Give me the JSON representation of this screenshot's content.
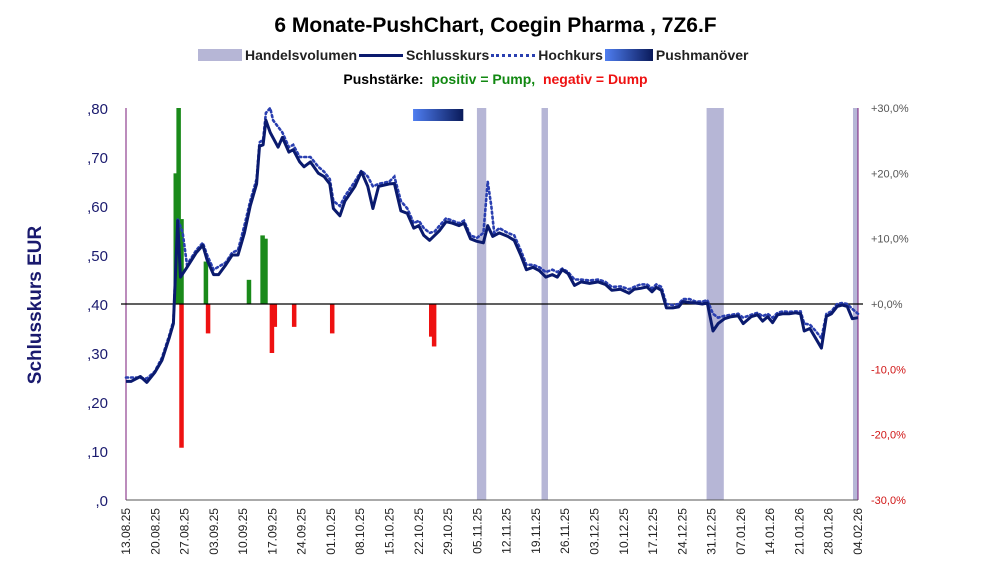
{
  "chart_data": {
    "type": "bar+line",
    "title": "6 Monate-PushChart, Coegin Pharma , 7Z6.F",
    "legend": {
      "volume": "Handelsvolumen",
      "close": "Schlusskurs",
      "high": "Hochkurs",
      "push": "Pushmanöver"
    },
    "subtitle": {
      "prefix": "Pushstärke:",
      "positive": "positiv = Pump,",
      "negative": "negativ = Dump"
    },
    "ylabel": "Schlusskurs EUR",
    "ylim": [
      0,
      0.8
    ],
    "y_ticks": [
      ",0",
      ",10",
      ",20",
      ",30",
      ",40",
      ",50",
      ",60",
      ",70",
      ",80"
    ],
    "y2lim": [
      -30,
      30
    ],
    "y2_ticks": [
      "-30,0%",
      "-20,0%",
      "-10,0%",
      "+0,0%",
      "+10,0%",
      "+20,0%",
      "+30,0%"
    ],
    "x_ticks": [
      "13.08.25",
      "20.08.25",
      "27.08.25",
      "03.09.25",
      "10.09.25",
      "17.09.25",
      "24.09.25",
      "01.10.25",
      "08.10.25",
      "15.10.25",
      "22.10.25",
      "29.10.25",
      "05.11.25",
      "12.11.25",
      "19.11.25",
      "26.11.25",
      "03.12.25",
      "10.12.25",
      "17.12.25",
      "24.12.25",
      "31.12.25",
      "07.01.26",
      "14.01.26",
      "21.01.26",
      "28.01.26",
      "04.02.26"
    ],
    "colors": {
      "close": "#0a1a6e",
      "high": "#2a3fb0",
      "volume": "#b6b6d6",
      "pump": "#1a8a1a",
      "dump": "#ee1111",
      "secondary_axis": "#7a1a7a",
      "primary_axis_text": "#1a1a6e"
    },
    "close_series": {
      "name": "Schlusskurs",
      "points": [
        [
          0.0,
          0.242
        ],
        [
          0.7,
          0.242
        ],
        [
          2.0,
          0.252
        ],
        [
          2.9,
          0.24
        ],
        [
          4.0,
          0.26
        ],
        [
          5.0,
          0.285
        ],
        [
          6.0,
          0.33
        ],
        [
          6.6,
          0.36
        ],
        [
          7.2,
          0.57
        ],
        [
          7.6,
          0.455
        ],
        [
          8.5,
          0.475
        ],
        [
          9.8,
          0.505
        ],
        [
          10.7,
          0.52
        ],
        [
          11.3,
          0.49
        ],
        [
          12.2,
          0.46
        ],
        [
          12.9,
          0.46
        ],
        [
          13.9,
          0.48
        ],
        [
          14.8,
          0.5
        ],
        [
          15.6,
          0.5
        ],
        [
          16.5,
          0.545
        ],
        [
          17.3,
          0.6
        ],
        [
          18.2,
          0.645
        ],
        [
          18.6,
          0.722
        ],
        [
          19.1,
          0.725
        ],
        [
          19.5,
          0.775
        ],
        [
          20.1,
          0.75
        ],
        [
          21.2,
          0.72
        ],
        [
          21.8,
          0.74
        ],
        [
          22.7,
          0.71
        ],
        [
          23.3,
          0.715
        ],
        [
          24.2,
          0.69
        ],
        [
          24.8,
          0.68
        ],
        [
          25.7,
          0.69
        ],
        [
          26.8,
          0.667
        ],
        [
          27.6,
          0.66
        ],
        [
          28.4,
          0.645
        ],
        [
          28.9,
          0.595
        ],
        [
          29.8,
          0.58
        ],
        [
          30.5,
          0.61
        ],
        [
          31.9,
          0.64
        ],
        [
          32.8,
          0.67
        ],
        [
          33.7,
          0.64
        ],
        [
          34.4,
          0.595
        ],
        [
          35.2,
          0.64
        ],
        [
          36.7,
          0.645
        ],
        [
          37.4,
          0.646
        ],
        [
          38.3,
          0.59
        ],
        [
          39.2,
          0.585
        ],
        [
          40.1,
          0.555
        ],
        [
          40.8,
          0.56
        ],
        [
          41.5,
          0.54
        ],
        [
          42.3,
          0.53
        ],
        [
          43.0,
          0.54
        ],
        [
          43.7,
          0.55
        ],
        [
          44.6,
          0.568
        ],
        [
          45.5,
          0.565
        ],
        [
          46.4,
          0.56
        ],
        [
          47.1,
          0.565
        ],
        [
          48.0,
          0.533
        ],
        [
          48.9,
          0.528
        ],
        [
          49.8,
          0.525
        ],
        [
          50.4,
          0.56
        ],
        [
          51.1,
          0.538
        ],
        [
          52.0,
          0.545
        ],
        [
          53.2,
          0.538
        ],
        [
          54.1,
          0.53
        ],
        [
          55.0,
          0.5
        ],
        [
          55.8,
          0.47
        ],
        [
          56.7,
          0.475
        ],
        [
          57.6,
          0.468
        ],
        [
          58.5,
          0.455
        ],
        [
          59.4,
          0.46
        ],
        [
          60.1,
          0.455
        ],
        [
          60.8,
          0.47
        ],
        [
          61.6,
          0.462
        ],
        [
          62.5,
          0.438
        ],
        [
          63.4,
          0.445
        ],
        [
          64.6,
          0.442
        ],
        [
          65.8,
          0.445
        ],
        [
          66.8,
          0.44
        ],
        [
          67.7,
          0.428
        ],
        [
          68.9,
          0.43
        ],
        [
          70.1,
          0.422
        ],
        [
          70.8,
          0.43
        ],
        [
          71.7,
          0.432
        ],
        [
          72.6,
          0.435
        ],
        [
          73.3,
          0.425
        ],
        [
          73.9,
          0.434
        ],
        [
          74.6,
          0.428
        ],
        [
          75.3,
          0.392
        ],
        [
          76.2,
          0.392
        ],
        [
          77.0,
          0.394
        ],
        [
          77.6,
          0.405
        ],
        [
          78.5,
          0.403
        ],
        [
          79.4,
          0.402
        ],
        [
          80.3,
          0.4
        ],
        [
          81.0,
          0.402
        ],
        [
          81.8,
          0.345
        ],
        [
          82.5,
          0.36
        ],
        [
          83.4,
          0.37
        ],
        [
          84.3,
          0.374
        ],
        [
          85.3,
          0.376
        ],
        [
          86.0,
          0.36
        ],
        [
          87.1,
          0.374
        ],
        [
          88.0,
          0.378
        ],
        [
          88.7,
          0.365
        ],
        [
          89.4,
          0.374
        ],
        [
          90.1,
          0.362
        ],
        [
          90.8,
          0.378
        ],
        [
          91.5,
          0.38
        ],
        [
          92.4,
          0.38
        ],
        [
          93.3,
          0.382
        ],
        [
          94.0,
          0.38
        ],
        [
          94.5,
          0.345
        ],
        [
          95.3,
          0.35
        ],
        [
          96.1,
          0.33
        ],
        [
          96.9,
          0.31
        ],
        [
          97.6,
          0.375
        ],
        [
          98.3,
          0.38
        ],
        [
          99.1,
          0.395
        ],
        [
          99.8,
          0.398
        ],
        [
          100.5,
          0.395
        ],
        [
          101.2,
          0.37
        ],
        [
          102.0,
          0.372
        ]
      ]
    },
    "high_series": {
      "name": "Hochkurs",
      "points": [
        [
          0.0,
          0.25
        ],
        [
          1.4,
          0.25
        ],
        [
          2.9,
          0.248
        ],
        [
          4.0,
          0.262
        ],
        [
          5.0,
          0.29
        ],
        [
          6.0,
          0.335
        ],
        [
          6.6,
          0.365
        ],
        [
          7.2,
          0.575
        ],
        [
          7.9,
          0.545
        ],
        [
          8.5,
          0.48
        ],
        [
          9.8,
          0.51
        ],
        [
          10.7,
          0.525
        ],
        [
          11.3,
          0.5
        ],
        [
          12.2,
          0.47
        ],
        [
          13.9,
          0.485
        ],
        [
          14.8,
          0.505
        ],
        [
          15.6,
          0.51
        ],
        [
          16.5,
          0.56
        ],
        [
          17.3,
          0.61
        ],
        [
          18.2,
          0.655
        ],
        [
          18.6,
          0.73
        ],
        [
          19.1,
          0.735
        ],
        [
          19.5,
          0.79
        ],
        [
          20.1,
          0.8
        ],
        [
          20.5,
          0.775
        ],
        [
          21.8,
          0.75
        ],
        [
          22.7,
          0.72
        ],
        [
          23.3,
          0.725
        ],
        [
          24.2,
          0.7
        ],
        [
          24.8,
          0.7
        ],
        [
          25.7,
          0.7
        ],
        [
          26.8,
          0.68
        ],
        [
          27.6,
          0.67
        ],
        [
          28.4,
          0.655
        ],
        [
          28.9,
          0.61
        ],
        [
          29.8,
          0.6
        ],
        [
          30.5,
          0.62
        ],
        [
          31.9,
          0.65
        ],
        [
          32.8,
          0.672
        ],
        [
          33.7,
          0.66
        ],
        [
          34.4,
          0.64
        ],
        [
          35.2,
          0.645
        ],
        [
          36.7,
          0.65
        ],
        [
          37.4,
          0.66
        ],
        [
          38.3,
          0.61
        ],
        [
          39.2,
          0.595
        ],
        [
          40.1,
          0.565
        ],
        [
          40.8,
          0.57
        ],
        [
          41.5,
          0.555
        ],
        [
          42.3,
          0.545
        ],
        [
          43.0,
          0.548
        ],
        [
          43.7,
          0.56
        ],
        [
          44.6,
          0.575
        ],
        [
          45.5,
          0.57
        ],
        [
          46.4,
          0.565
        ],
        [
          47.1,
          0.57
        ],
        [
          48.0,
          0.54
        ],
        [
          48.9,
          0.535
        ],
        [
          49.8,
          0.545
        ],
        [
          50.4,
          0.65
        ],
        [
          50.9,
          0.6
        ],
        [
          51.3,
          0.545
        ],
        [
          52.0,
          0.555
        ],
        [
          53.2,
          0.545
        ],
        [
          54.1,
          0.54
        ],
        [
          55.0,
          0.51
        ],
        [
          55.8,
          0.48
        ],
        [
          56.7,
          0.48
        ],
        [
          57.6,
          0.475
        ],
        [
          58.5,
          0.465
        ],
        [
          59.4,
          0.47
        ],
        [
          60.1,
          0.465
        ],
        [
          60.8,
          0.472
        ],
        [
          61.6,
          0.465
        ],
        [
          62.5,
          0.45
        ],
        [
          63.4,
          0.45
        ],
        [
          64.6,
          0.448
        ],
        [
          65.8,
          0.45
        ],
        [
          66.8,
          0.445
        ],
        [
          67.7,
          0.435
        ],
        [
          68.9,
          0.436
        ],
        [
          70.1,
          0.43
        ],
        [
          70.8,
          0.435
        ],
        [
          71.7,
          0.44
        ],
        [
          72.6,
          0.44
        ],
        [
          73.3,
          0.432
        ],
        [
          73.9,
          0.44
        ],
        [
          74.6,
          0.435
        ],
        [
          75.3,
          0.4
        ],
        [
          76.2,
          0.398
        ],
        [
          77.0,
          0.4
        ],
        [
          77.6,
          0.41
        ],
        [
          78.5,
          0.41
        ],
        [
          79.4,
          0.405
        ],
        [
          80.3,
          0.405
        ],
        [
          81.0,
          0.408
        ],
        [
          81.8,
          0.38
        ],
        [
          82.5,
          0.372
        ],
        [
          83.4,
          0.376
        ],
        [
          84.3,
          0.378
        ],
        [
          85.3,
          0.38
        ],
        [
          86.0,
          0.372
        ],
        [
          87.1,
          0.378
        ],
        [
          88.0,
          0.382
        ],
        [
          88.7,
          0.375
        ],
        [
          89.4,
          0.38
        ],
        [
          90.1,
          0.372
        ],
        [
          90.8,
          0.382
        ],
        [
          91.5,
          0.385
        ],
        [
          92.4,
          0.384
        ],
        [
          93.3,
          0.385
        ],
        [
          94.0,
          0.385
        ],
        [
          94.5,
          0.36
        ],
        [
          95.3,
          0.358
        ],
        [
          96.1,
          0.345
        ],
        [
          96.9,
          0.33
        ],
        [
          97.6,
          0.38
        ],
        [
          98.3,
          0.385
        ],
        [
          99.1,
          0.4
        ],
        [
          99.8,
          0.402
        ],
        [
          100.5,
          0.4
        ],
        [
          101.2,
          0.39
        ],
        [
          102.0,
          0.38
        ]
      ]
    },
    "volume_bands": [
      {
        "x": 48.9,
        "width": 1.3
      },
      {
        "x": 57.9,
        "width": 0.9
      },
      {
        "x": 80.9,
        "width": 2.4
      },
      {
        "x": 101.3,
        "width": 0.7
      }
    ],
    "push_strength": [
      {
        "x": 6.9,
        "value": 20.0
      },
      {
        "x": 7.3,
        "value": 30.0
      },
      {
        "x": 7.7,
        "value": 13.0
      },
      {
        "x": 7.7,
        "value": -22.0
      },
      {
        "x": 11.1,
        "value": 6.5
      },
      {
        "x": 11.4,
        "value": -4.5
      },
      {
        "x": 17.1,
        "value": 3.7
      },
      {
        "x": 19.0,
        "value": 10.5
      },
      {
        "x": 19.4,
        "value": 10.0
      },
      {
        "x": 20.3,
        "value": -7.5
      },
      {
        "x": 20.7,
        "value": -3.5
      },
      {
        "x": 23.4,
        "value": -3.5
      },
      {
        "x": 28.7,
        "value": -4.5
      },
      {
        "x": 42.5,
        "value": -5.0
      },
      {
        "x": 42.9,
        "value": -6.5
      }
    ],
    "push_marker": {
      "x_start": 40.0,
      "x_end": 47.0
    }
  }
}
